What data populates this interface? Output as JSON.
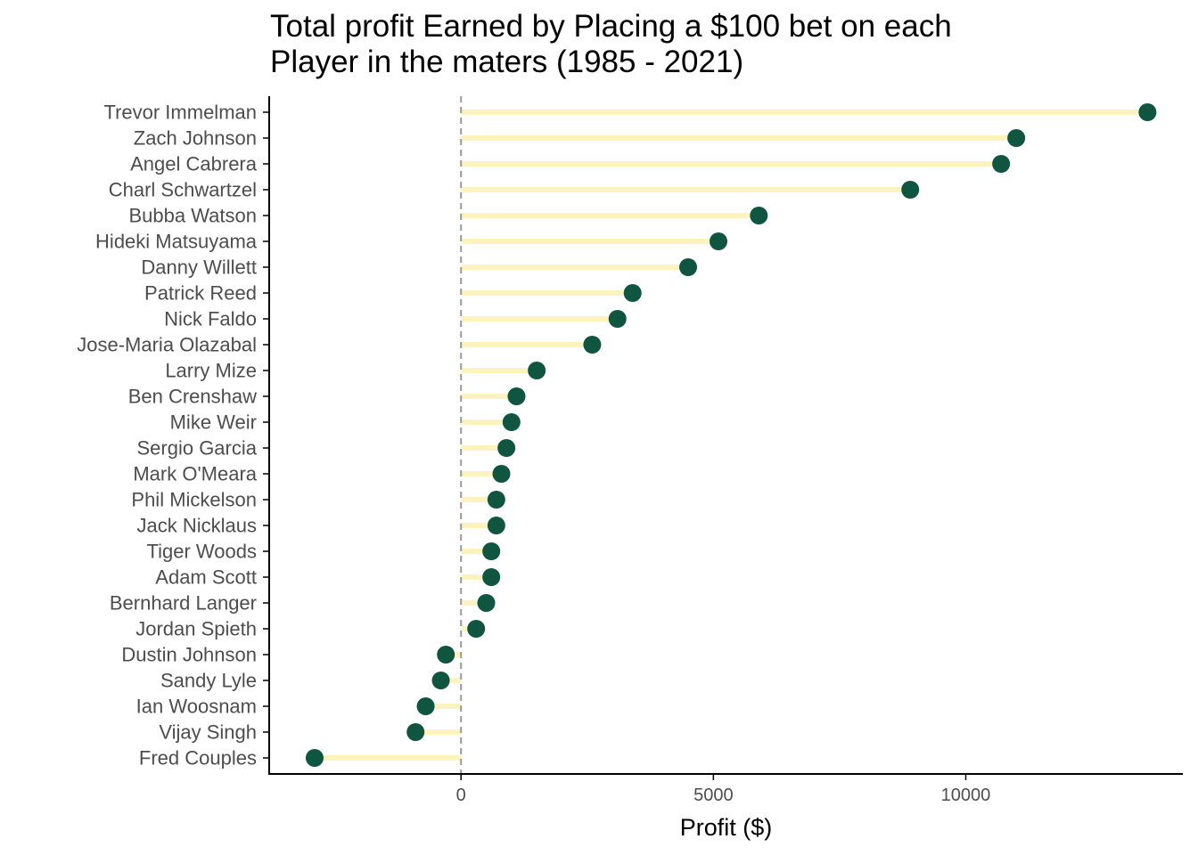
{
  "chart_data": {
    "type": "lollipop",
    "title_lines": [
      "Total profit Earned by Placing a $100 bet on each",
      "Player in the maters (1985 - 2021)"
    ],
    "xlabel": "Profit ($)",
    "ylabel": "",
    "xlim": [
      -3800,
      14300
    ],
    "xticks": [
      0,
      5000,
      10000
    ],
    "zero_line": "dashed",
    "grid": false,
    "colors": {
      "point": "#0f5540",
      "stem": "#fdf3bf",
      "zero_line": "#999999",
      "axis": "#000000",
      "tick_text": "#4d4d4d"
    },
    "categories": [
      "Trevor Immelman",
      "Zach Johnson",
      "Angel Cabrera",
      "Charl Schwartzel",
      "Bubba Watson",
      "Hideki Matsuyama",
      "Danny Willett",
      "Patrick Reed",
      "Nick Faldo",
      "Jose-Maria Olazabal",
      "Larry Mize",
      "Ben Crenshaw",
      "Mike Weir",
      "Sergio Garcia",
      "Mark O'Meara",
      "Phil Mickelson",
      "Jack Nicklaus",
      "Tiger Woods",
      "Adam Scott",
      "Bernhard Langer",
      "Jordan Spieth",
      "Dustin Johnson",
      "Sandy Lyle",
      "Ian Woosnam",
      "Vijay Singh",
      "Fred Couples"
    ],
    "values": [
      13600,
      11000,
      10700,
      8900,
      5900,
      5100,
      4500,
      3400,
      3100,
      2600,
      1500,
      1100,
      1000,
      900,
      800,
      700,
      700,
      600,
      600,
      500,
      300,
      -300,
      -400,
      -700,
      -900,
      -2900
    ]
  }
}
